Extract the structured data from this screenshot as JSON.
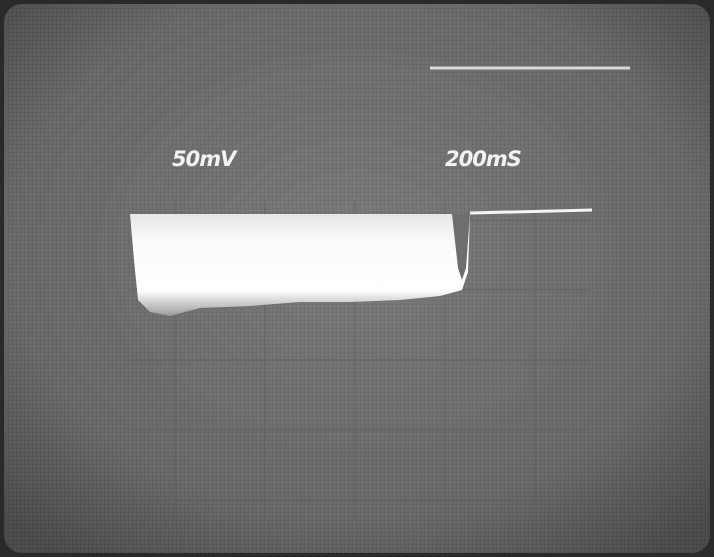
{
  "readouts": {
    "volts_per_div": "50mV",
    "time_per_div": "200mS"
  }
}
